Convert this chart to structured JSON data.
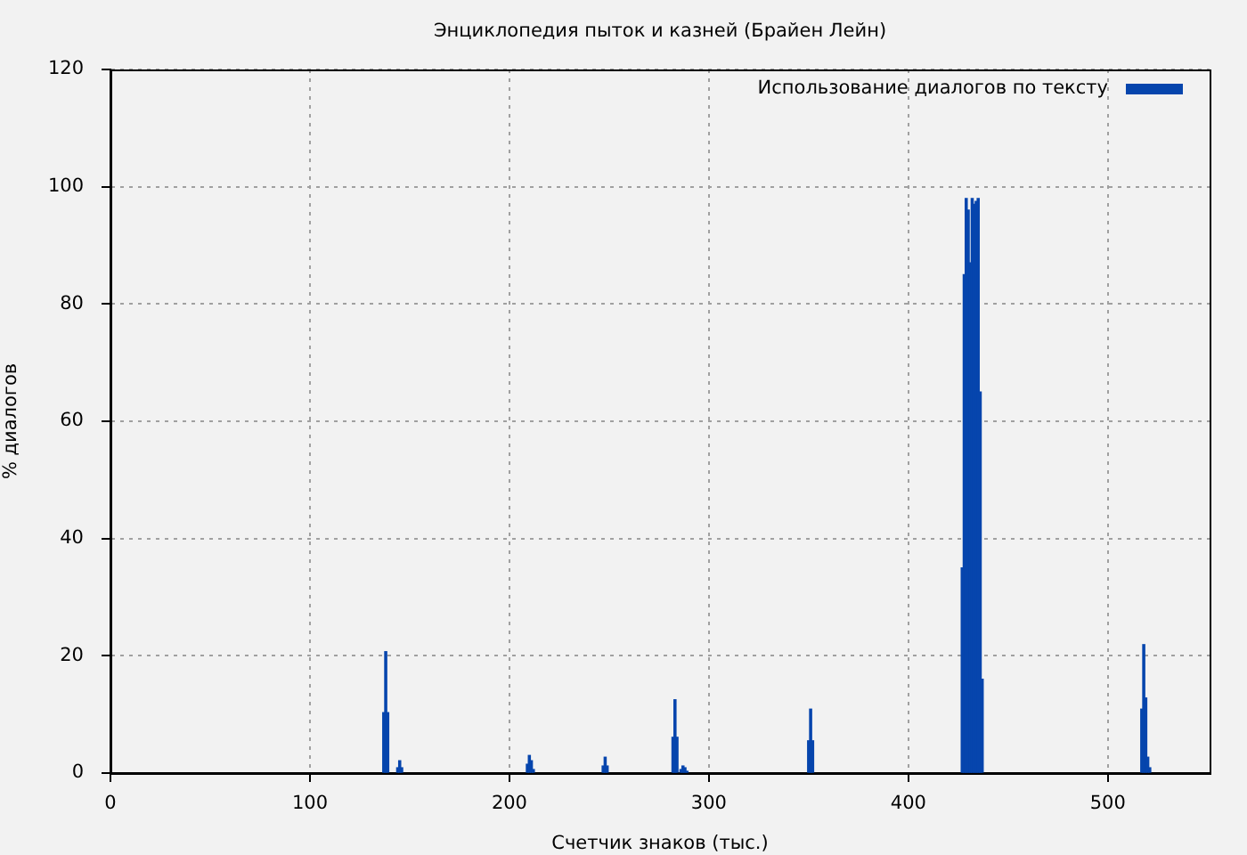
{
  "chart_data": {
    "type": "bar",
    "title": "Энциклопедия пыток и казней (Брайен Лейн)",
    "xlabel": "Счетчик знаков (тыс.)",
    "ylabel": "% диалогов",
    "x": [
      137,
      138,
      139,
      144,
      145,
      146,
      209,
      210,
      211,
      212,
      247,
      248,
      249,
      282,
      283,
      284,
      286,
      287,
      288,
      289,
      350,
      351,
      352,
      427,
      428,
      429,
      430,
      431,
      432,
      433,
      434,
      435,
      436,
      437,
      517,
      518,
      519,
      520,
      521
    ],
    "series": [
      {
        "name": "Использование диалогов по тексту",
        "color": "#0645ad",
        "values": [
          10.3,
          20.7,
          10.3,
          0.9,
          2.1,
          0.9,
          1.5,
          3.0,
          2.1,
          0.6,
          1.2,
          2.7,
          1.2,
          6.1,
          12.5,
          6.1,
          0.6,
          1.2,
          0.9,
          0.3,
          5.5,
          10.9,
          5.5,
          35,
          85,
          98,
          96,
          87,
          98,
          97,
          97.5,
          98,
          65,
          16,
          10.9,
          21.9,
          12.8,
          2.7,
          0.9
        ]
      }
    ],
    "xlim": [
      0,
      551
    ],
    "xticks": [
      0,
      100,
      200,
      300,
      400,
      500
    ],
    "ylim": [
      0,
      120
    ],
    "yticks": [
      0,
      20,
      40,
      60,
      80,
      100,
      120
    ],
    "grid": true,
    "legend": "top right"
  }
}
